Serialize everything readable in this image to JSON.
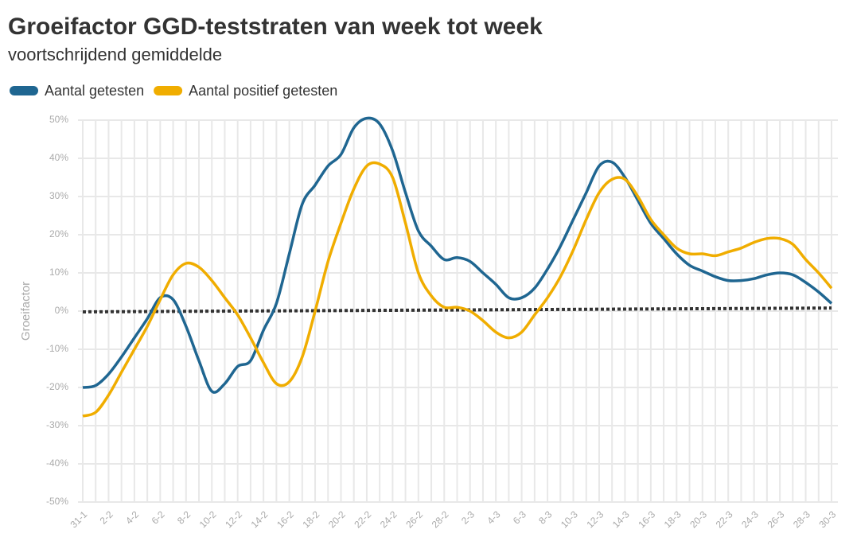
{
  "chart_data": {
    "type": "line",
    "title": "Groeifactor GGD-teststraten van week tot week",
    "subtitle": "voortschrijdend gemiddelde",
    "y_label": "Groeifactor",
    "categories": [
      "31-1",
      null,
      "2-2",
      null,
      "4-2",
      null,
      "6-2",
      null,
      "8-2",
      null,
      "10-2",
      null,
      "12-2",
      null,
      "14-2",
      null,
      "16-2",
      null,
      "18-2",
      null,
      "20-2",
      null,
      "22-2",
      null,
      "24-2",
      null,
      "26-2",
      null,
      "28-2",
      null,
      "2-3",
      null,
      "4-3",
      null,
      "6-3",
      null,
      "8-3",
      null,
      "10-3",
      null,
      "12-3",
      null,
      "14-3",
      null,
      "16-3",
      null,
      "18-3",
      null,
      "20-3",
      null,
      "22-3",
      null,
      "24-3",
      null,
      "26-3",
      null,
      "28-3",
      null,
      "30-3"
    ],
    "series": [
      {
        "name": "Aantal getesten",
        "color": "#1f6691",
        "values": [
          -20,
          -19.5,
          -16.5,
          -12,
          -7,
          -2,
          3.5,
          3,
          -4,
          -13,
          -21,
          -19,
          -14.5,
          -13,
          -5,
          2,
          15,
          28,
          33,
          38,
          41,
          48,
          50.5,
          49,
          42,
          31,
          21,
          17,
          13.5,
          14,
          13,
          10,
          7,
          3.5,
          3.5,
          6,
          11,
          17,
          24,
          31,
          38,
          39,
          35,
          29,
          23,
          19,
          15,
          12,
          10.5,
          9,
          8,
          8,
          8.5,
          9.5,
          10,
          9.5,
          7.5,
          5,
          2
        ]
      },
      {
        "name": "Aantal positief getesten",
        "color": "#f0ad00",
        "values": [
          -27.5,
          -26.5,
          -22,
          -16,
          -10,
          -4,
          3,
          9.5,
          12.5,
          11.5,
          8,
          3.5,
          -1,
          -7,
          -13.5,
          -19,
          -18.5,
          -12,
          0,
          13,
          23,
          32,
          38,
          38.5,
          35,
          23,
          10,
          4,
          1,
          1,
          0,
          -2.5,
          -5.5,
          -7,
          -5.5,
          -1,
          3.5,
          9,
          16,
          24,
          31,
          34.5,
          34.5,
          30,
          24,
          20,
          16.5,
          15,
          15,
          14.5,
          15.5,
          16.5,
          18,
          19,
          19,
          17.5,
          13.5,
          10,
          6
        ]
      }
    ],
    "trendline": {
      "color": "#333333",
      "values": [
        -0.2,
        0.8
      ]
    },
    "ylim": [
      -50,
      50
    ],
    "yticks": [
      {
        "value": -50,
        "label": "-50%"
      },
      {
        "value": -40,
        "label": "-40%"
      },
      {
        "value": -30,
        "label": "-30%"
      },
      {
        "value": -20,
        "label": "-20%"
      },
      {
        "value": -10,
        "label": "-10%"
      },
      {
        "value": 0,
        "label": "0%"
      },
      {
        "value": 10,
        "label": "10%"
      },
      {
        "value": 20,
        "label": "20%"
      },
      {
        "value": 30,
        "label": "30%"
      },
      {
        "value": 40,
        "label": "40%"
      },
      {
        "value": 50,
        "label": "50%"
      }
    ],
    "grid": true,
    "legend": "top-left"
  }
}
